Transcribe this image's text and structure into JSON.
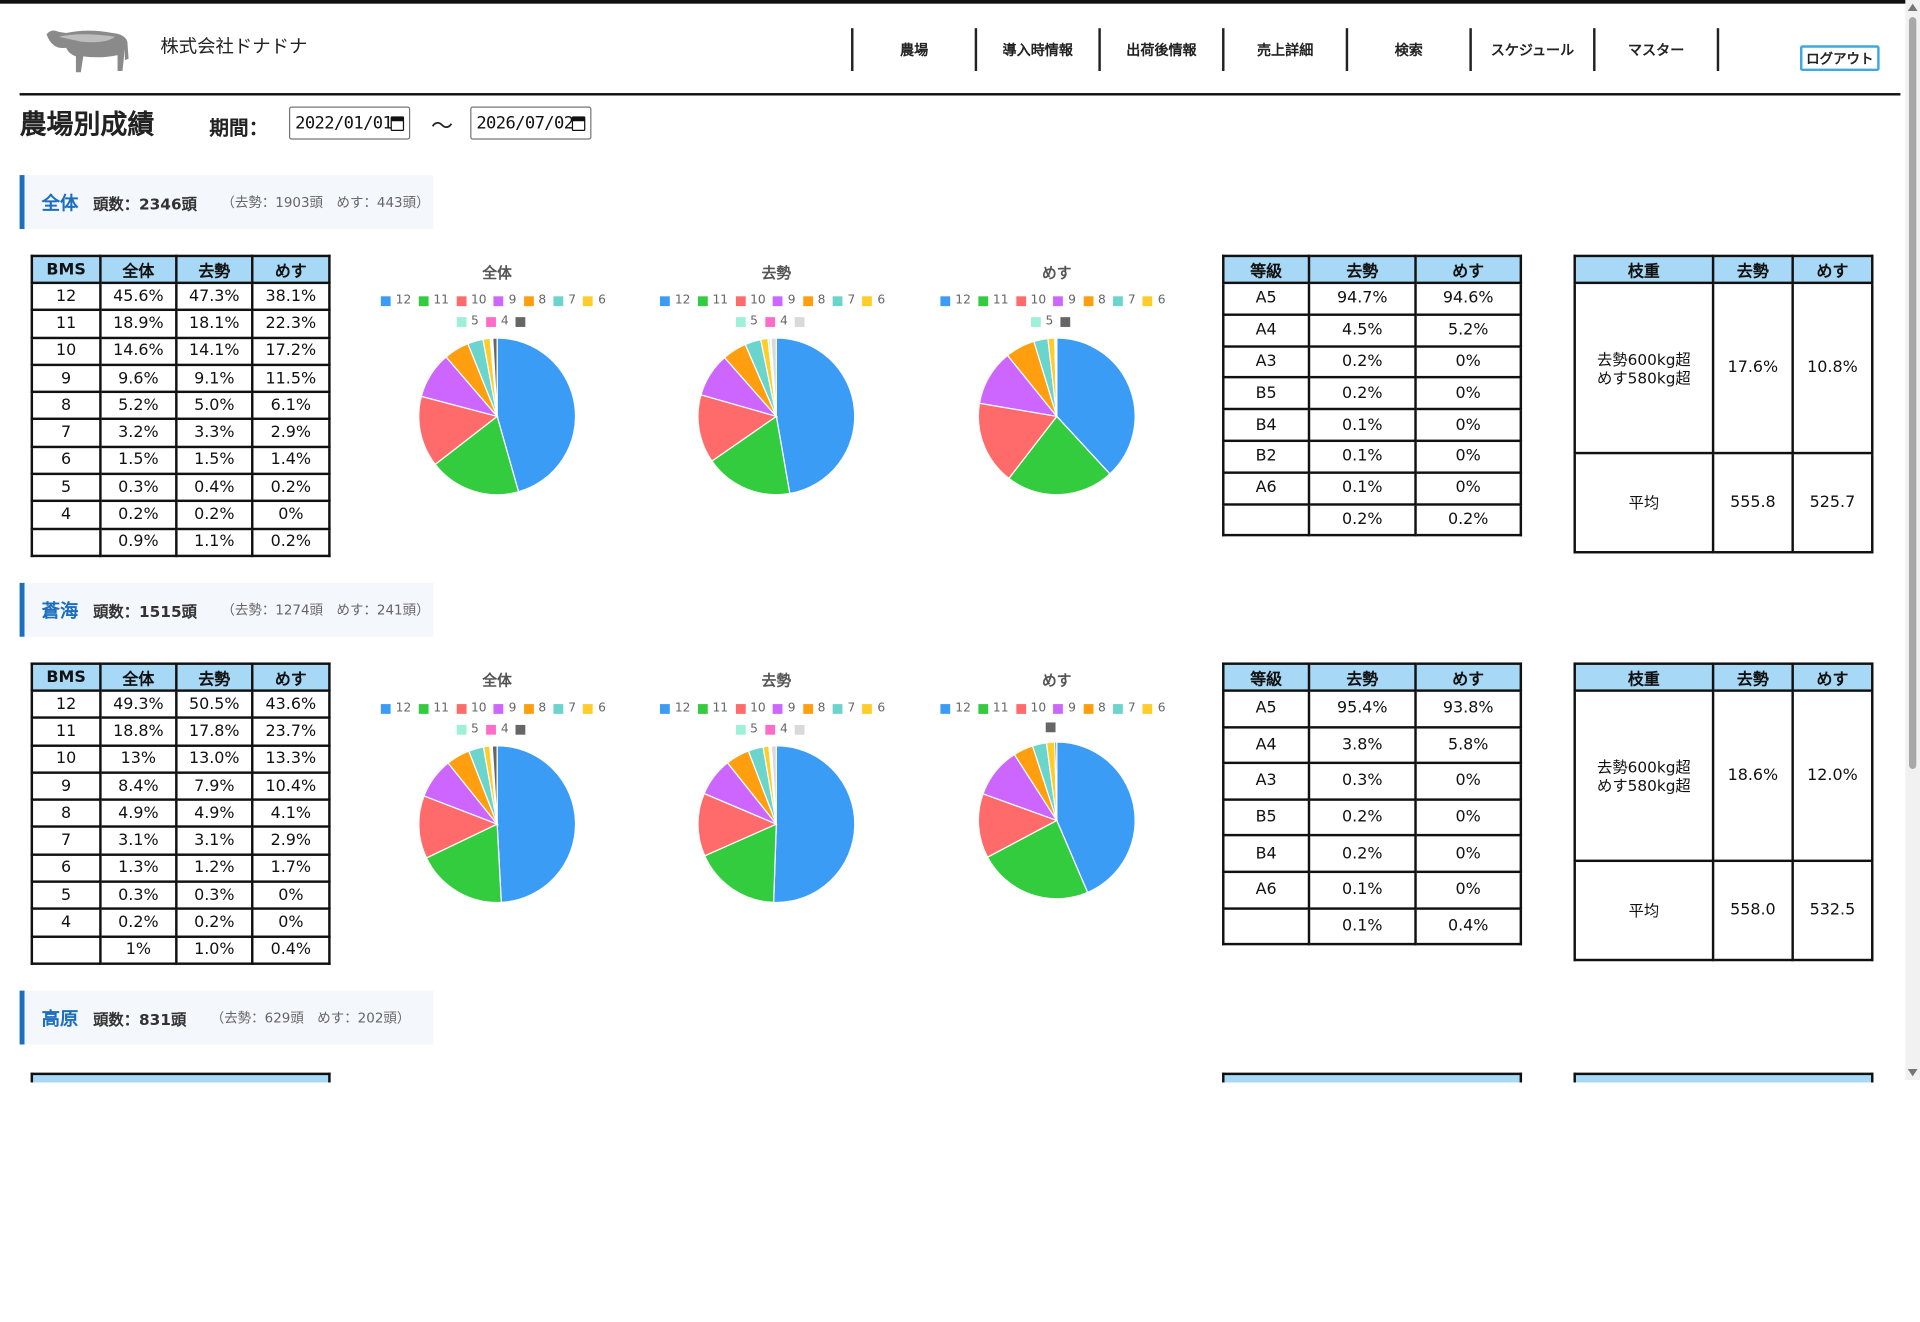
{
  "header": {
    "company": "株式会社ドナドナ",
    "nav": [
      "農場",
      "導入時情報",
      "出荷後情報",
      "売上詳細",
      "検索",
      "スケジュール",
      "マスター"
    ],
    "logout": "ログアウト"
  },
  "page": {
    "title": "農場別成績",
    "period_label": "期間：",
    "date_from": "2022/01/01",
    "date_to": "2026/07/02",
    "tilde": "〜"
  },
  "palette": {
    "12": "#3b9cf5",
    "11": "#33cc3f",
    "10": "#ff6b6b",
    "9": "#cc66ff",
    "8": "#ff9f0f",
    "7": "#6bd4cc",
    "6": "#ffcd29",
    "5": "#9ef0d6",
    "4": "#ff6bc9",
    "blank": "#d9d9d9",
    "dark": "#666666"
  },
  "sections": [
    {
      "name": "全体",
      "head": "頭数：2346頭",
      "sub": "（去勢：1903頭　めす：443頭）",
      "bms_headers": [
        "BMS",
        "全体",
        "去勢",
        "めす"
      ],
      "bms_rows": [
        [
          "12",
          "45.6%",
          "47.3%",
          "38.1%"
        ],
        [
          "11",
          "18.9%",
          "18.1%",
          "22.3%"
        ],
        [
          "10",
          "14.6%",
          "14.1%",
          "17.2%"
        ],
        [
          "9",
          "9.6%",
          "9.1%",
          "11.5%"
        ],
        [
          "8",
          "5.2%",
          "5.0%",
          "6.1%"
        ],
        [
          "7",
          "3.2%",
          "3.3%",
          "2.9%"
        ],
        [
          "6",
          "1.5%",
          "1.5%",
          "1.4%"
        ],
        [
          "5",
          "0.3%",
          "0.4%",
          "0.2%"
        ],
        [
          "4",
          "0.2%",
          "0.2%",
          "0%"
        ],
        [
          "",
          "0.9%",
          "1.1%",
          "0.2%"
        ]
      ],
      "pies": [
        {
          "title": "全体",
          "legend": [
            "12",
            "11",
            "10",
            "9",
            "8",
            "7",
            "6",
            "5",
            "4",
            "dark"
          ],
          "values": [
            45.6,
            18.9,
            14.6,
            9.6,
            5.2,
            3.2,
            1.5,
            0.3,
            0.2,
            0.9
          ]
        },
        {
          "title": "去勢",
          "legend": [
            "12",
            "11",
            "10",
            "9",
            "8",
            "7",
            "6",
            "5",
            "4",
            "blank"
          ],
          "values": [
            47.3,
            18.1,
            14.1,
            9.1,
            5.0,
            3.3,
            1.5,
            0.4,
            0.2,
            1.1
          ]
        },
        {
          "title": "めす",
          "legend": [
            "12",
            "11",
            "10",
            "9",
            "8",
            "7",
            "6",
            "5",
            "dark"
          ],
          "values": [
            38.1,
            22.3,
            17.2,
            11.5,
            6.1,
            2.9,
            1.4,
            0.2,
            0.2
          ]
        }
      ],
      "grade_headers": [
        "等級",
        "去勢",
        "めす"
      ],
      "grade_rows": [
        [
          "A5",
          "94.7%",
          "94.6%"
        ],
        [
          "A4",
          "4.5%",
          "5.2%"
        ],
        [
          "A3",
          "0.2%",
          "0%"
        ],
        [
          "B5",
          "0.2%",
          "0%"
        ],
        [
          "B4",
          "0.1%",
          "0%"
        ],
        [
          "B2",
          "0.1%",
          "0%"
        ],
        [
          "A6",
          "0.1%",
          "0%"
        ],
        [
          "",
          "0.2%",
          "0.2%"
        ]
      ],
      "weight_headers": [
        "枝重",
        "去勢",
        "めす"
      ],
      "weight_rows": [
        [
          "去勢600kg超\nめす580kg超",
          "17.6%",
          "10.8%"
        ],
        [
          "平均",
          "555.8",
          "525.7"
        ]
      ]
    },
    {
      "name": "蒼海",
      "head": "頭数：1515頭",
      "sub": "（去勢：1274頭　めす：241頭）",
      "bms_headers": [
        "BMS",
        "全体",
        "去勢",
        "めす"
      ],
      "bms_rows": [
        [
          "12",
          "49.3%",
          "50.5%",
          "43.6%"
        ],
        [
          "11",
          "18.8%",
          "17.8%",
          "23.7%"
        ],
        [
          "10",
          "13%",
          "13.0%",
          "13.3%"
        ],
        [
          "9",
          "8.4%",
          "7.9%",
          "10.4%"
        ],
        [
          "8",
          "4.9%",
          "4.9%",
          "4.1%"
        ],
        [
          "7",
          "3.1%",
          "3.1%",
          "2.9%"
        ],
        [
          "6",
          "1.3%",
          "1.2%",
          "1.7%"
        ],
        [
          "5",
          "0.3%",
          "0.3%",
          "0%"
        ],
        [
          "4",
          "0.2%",
          "0.2%",
          "0%"
        ],
        [
          "",
          "1%",
          "1.0%",
          "0.4%"
        ]
      ],
      "pies": [
        {
          "title": "全体",
          "legend": [
            "12",
            "11",
            "10",
            "9",
            "8",
            "7",
            "6",
            "5",
            "4",
            "dark"
          ],
          "values": [
            49.3,
            18.8,
            13.0,
            8.4,
            4.9,
            3.1,
            1.3,
            0.3,
            0.2,
            1.0
          ]
        },
        {
          "title": "去勢",
          "legend": [
            "12",
            "11",
            "10",
            "9",
            "8",
            "7",
            "6",
            "5",
            "4",
            "blank"
          ],
          "values": [
            50.5,
            17.8,
            13.0,
            7.9,
            4.9,
            3.1,
            1.2,
            0.3,
            0.2,
            1.0
          ]
        },
        {
          "title": "めす",
          "legend": [
            "12",
            "11",
            "10",
            "9",
            "8",
            "7",
            "6",
            "dark"
          ],
          "values": [
            43.6,
            23.7,
            13.3,
            10.4,
            4.1,
            2.9,
            1.7,
            0.4
          ]
        }
      ],
      "grade_headers": [
        "等級",
        "去勢",
        "めす"
      ],
      "grade_rows": [
        [
          "A5",
          "95.4%",
          "93.8%"
        ],
        [
          "A4",
          "3.8%",
          "5.8%"
        ],
        [
          "A3",
          "0.3%",
          "0%"
        ],
        [
          "B5",
          "0.2%",
          "0%"
        ],
        [
          "B4",
          "0.2%",
          "0%"
        ],
        [
          "A6",
          "0.1%",
          "0%"
        ],
        [
          "",
          "0.1%",
          "0.4%"
        ]
      ],
      "weight_headers": [
        "枝重",
        "去勢",
        "めす"
      ],
      "weight_rows": [
        [
          "去勢600kg超\nめす580kg超",
          "18.6%",
          "12.0%"
        ],
        [
          "平均",
          "558.0",
          "532.5"
        ]
      ]
    },
    {
      "name": "高原",
      "head": "頭数：831頭",
      "sub": "（去勢：629頭　めす：202頭）"
    }
  ]
}
